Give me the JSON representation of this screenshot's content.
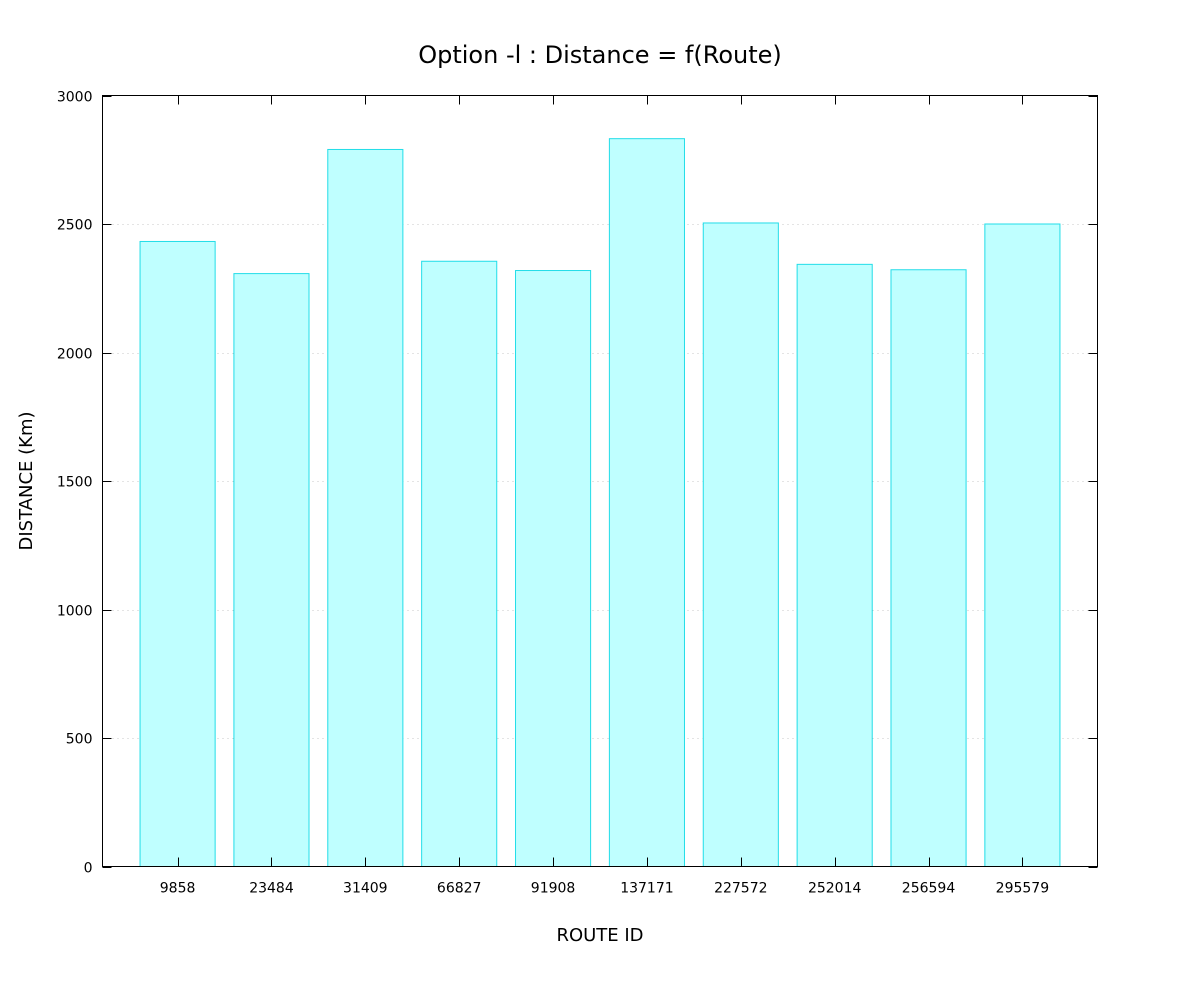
{
  "chart_data": {
    "type": "bar",
    "title": "Option -l : Distance = f(Route)",
    "xlabel": "ROUTE ID",
    "ylabel": "DISTANCE (Km)",
    "categories": [
      "9858",
      "23484",
      "31409",
      "66827",
      "91908",
      "137171",
      "227572",
      "252014",
      "256594",
      "295579"
    ],
    "values": [
      2432,
      2307,
      2790,
      2355,
      2319,
      2832,
      2504,
      2343,
      2322,
      2500
    ],
    "ylim": [
      0,
      3000
    ],
    "yticks": [
      0,
      500,
      1000,
      1500,
      2000,
      2500,
      3000
    ],
    "grid": "horizontal dotted",
    "colors": {
      "bar_fill": "#bfffff",
      "bar_stroke": "#22dde8"
    }
  }
}
